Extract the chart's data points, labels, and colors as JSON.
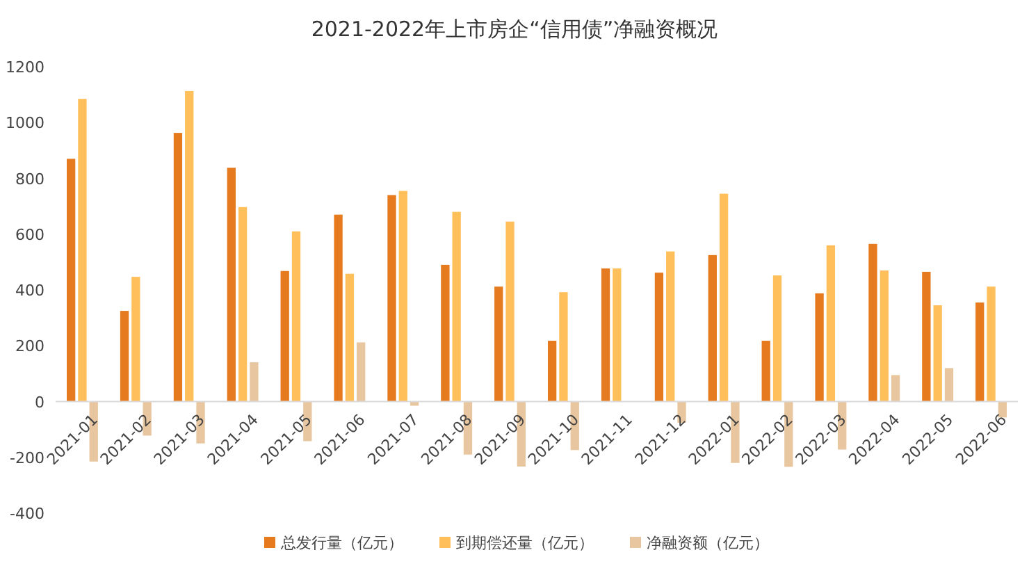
{
  "chart_data": {
    "type": "bar",
    "title": "2021-2022年上市房企“信用债”净融资概况",
    "categories": [
      "2021-01",
      "2021-02",
      "2021-03",
      "2021-04",
      "2021-05",
      "2021-06",
      "2021-07",
      "2021-08",
      "2021-09",
      "2021-10",
      "2021-11",
      "2021-12",
      "2022-01",
      "2022-02",
      "2022-03",
      "2022-04",
      "2022-05",
      "2022-06"
    ],
    "series": [
      {
        "name": "总发行量（亿元）",
        "color": "#e57a1e",
        "values": [
          870,
          325,
          963,
          838,
          468,
          670,
          740,
          490,
          412,
          218,
          477,
          462,
          525,
          218,
          388,
          565,
          465,
          355
        ]
      },
      {
        "name": "到期偿还量（亿元）",
        "color": "#ffbf5a",
        "values": [
          1085,
          447,
          1113,
          697,
          610,
          458,
          755,
          680,
          645,
          392,
          477,
          538,
          745,
          452,
          560,
          470,
          345,
          412
        ]
      },
      {
        "name": "净融资额（亿元）",
        "color": "#e8c7a0",
        "values": [
          -215,
          -122,
          -150,
          141,
          -142,
          212,
          -15,
          -190,
          -233,
          -174,
          0,
          -76,
          -220,
          -234,
          -172,
          95,
          120,
          -57
        ]
      }
    ],
    "ylim": [
      -400,
      1200
    ],
    "yticks": [
      -400,
      -200,
      0,
      200,
      400,
      600,
      800,
      1000,
      1200
    ],
    "grid": false,
    "legend": "bottom"
  }
}
